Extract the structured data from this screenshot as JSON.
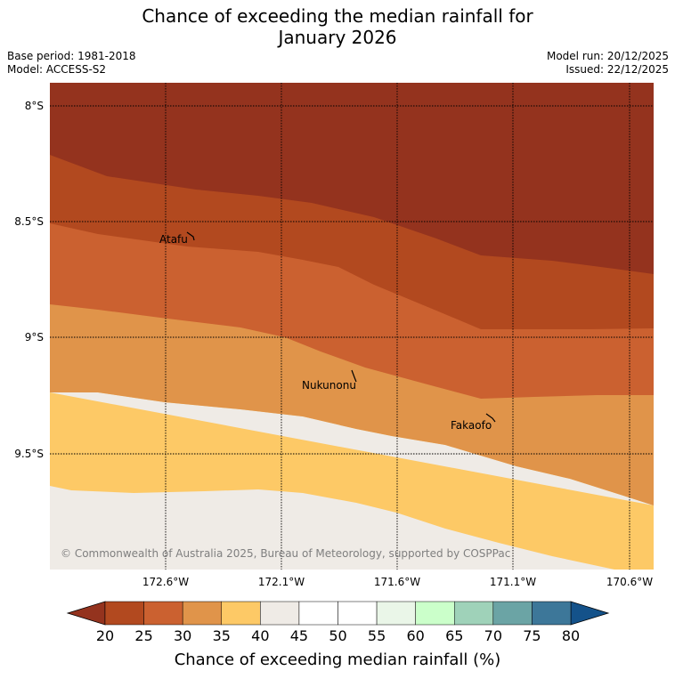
{
  "title_line1": "Chance of exceeding the median rainfall for",
  "title_line2": "January 2026",
  "base_period": "Base period: 1981-2018",
  "model": "Model: ACCESS-S2",
  "model_run": "Model run: 20/12/2025",
  "issued": "Issued: 22/12/2025",
  "map": {
    "lat_labels": [
      "8°S",
      "8.5°S",
      "9°S",
      "9.5°S"
    ],
    "lon_labels": [
      "172.6°W",
      "172.1°W",
      "171.6°W",
      "171.1°W",
      "170.6°W"
    ],
    "places": [
      {
        "name": "Atafu"
      },
      {
        "name": "Nukunonu"
      },
      {
        "name": "Fakaofo"
      }
    ],
    "copyright": "© Commonwealth of Australia 2025, Bureau of Meteorology, supported by COSPPac"
  },
  "colorbar": {
    "title": "Chance of exceeding median rainfall (%)",
    "ticks": [
      "20",
      "25",
      "30",
      "35",
      "40",
      "45",
      "50",
      "55",
      "60",
      "65",
      "70",
      "75",
      "80"
    ],
    "colors": [
      "#b2491f",
      "#cb6130",
      "#e0944a",
      "#fdc966",
      "#efebe6",
      "#ffffff",
      "#ffffff",
      "#eaf6e8",
      "#cbffca",
      "#9fd2b9",
      "#6ba4a5",
      "#3d7799"
    ],
    "under_color": "#94331e",
    "over_color": "#14528a"
  }
}
